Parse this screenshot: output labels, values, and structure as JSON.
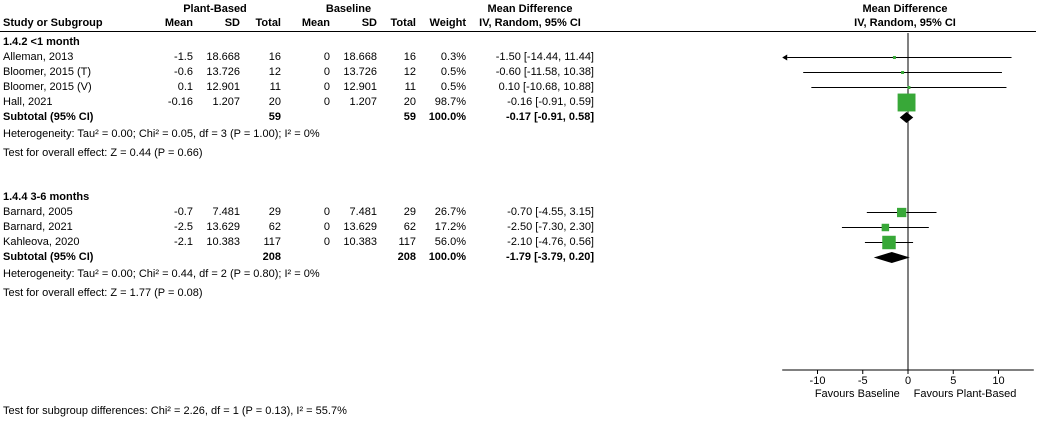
{
  "header": {
    "group1": "Plant-Based",
    "group2": "Baseline",
    "md_col_title": "Mean Difference",
    "md_col_sub": "IV, Random, 95% CI",
    "plot_title": "Mean Difference",
    "plot_sub": "IV, Random, 95% CI",
    "cols": [
      "Study or Subgroup",
      "Mean",
      "SD",
      "Total",
      "Mean",
      "SD",
      "Total",
      "Weight",
      "IV, Random, 95% CI"
    ]
  },
  "chart_data": {
    "type": "forest",
    "effect_measure": "Mean Difference IV, Random, 95% CI",
    "x_ticks": [
      -10,
      -5,
      0,
      5,
      10
    ],
    "xlim": [
      -13.9,
      13.9
    ],
    "favours_left": "Favours Baseline",
    "favours_right": "Favours Plant-Based",
    "marker_color": "#38a838",
    "diamond_color": "#000000",
    "subgroups": [
      {
        "label": "1.4.2 <1 month",
        "studies": [
          {
            "name": "Alleman, 2013",
            "mean1": "-1.5",
            "sd1": "18.668",
            "n1": "16",
            "mean2": "0",
            "sd2": "18.668",
            "n2": "16",
            "weight": "0.3%",
            "weight_pct": 0.3,
            "md": -1.5,
            "ci_lo": -14.44,
            "ci_hi": 11.44,
            "ci_text": "-1.50 [-14.44, 11.44]"
          },
          {
            "name": "Bloomer, 2015 (T)",
            "mean1": "-0.6",
            "sd1": "13.726",
            "n1": "12",
            "mean2": "0",
            "sd2": "13.726",
            "n2": "12",
            "weight": "0.5%",
            "weight_pct": 0.5,
            "md": -0.6,
            "ci_lo": -11.58,
            "ci_hi": 10.38,
            "ci_text": "-0.60 [-11.58, 10.38]"
          },
          {
            "name": "Bloomer, 2015 (V)",
            "mean1": "0.1",
            "sd1": "12.901",
            "n1": "11",
            "mean2": "0",
            "sd2": "12.901",
            "n2": "11",
            "weight": "0.5%",
            "weight_pct": 0.5,
            "md": 0.1,
            "ci_lo": -10.68,
            "ci_hi": 10.88,
            "ci_text": "0.10 [-10.68, 10.88]"
          },
          {
            "name": "Hall, 2021",
            "mean1": "-0.16",
            "sd1": "1.207",
            "n1": "20",
            "mean2": "0",
            "sd2": "1.207",
            "n2": "20",
            "weight": "98.7%",
            "weight_pct": 98.7,
            "md": -0.16,
            "ci_lo": -0.91,
            "ci_hi": 0.59,
            "ci_text": "-0.16 [-0.91, 0.59]"
          }
        ],
        "subtotal": {
          "label": "Subtotal (95% CI)",
          "n1": "59",
          "n2": "59",
          "weight": "100.0%",
          "md": -0.17,
          "ci_lo": -0.91,
          "ci_hi": 0.58,
          "ci_text": "-0.17 [-0.91, 0.58]"
        },
        "heterogeneity": "Heterogeneity: Tau² = 0.00; Chi² = 0.05, df = 3 (P = 1.00); I² = 0%",
        "overall_effect": "Test for overall effect: Z = 0.44 (P = 0.66)"
      },
      {
        "label": "1.4.4 3-6 months",
        "studies": [
          {
            "name": "Barnard, 2005",
            "mean1": "-0.7",
            "sd1": "7.481",
            "n1": "29",
            "mean2": "0",
            "sd2": "7.481",
            "n2": "29",
            "weight": "26.7%",
            "weight_pct": 26.7,
            "md": -0.7,
            "ci_lo": -4.55,
            "ci_hi": 3.15,
            "ci_text": "-0.70 [-4.55, 3.15]"
          },
          {
            "name": "Barnard, 2021",
            "mean1": "-2.5",
            "sd1": "13.629",
            "n1": "62",
            "mean2": "0",
            "sd2": "13.629",
            "n2": "62",
            "weight": "17.2%",
            "weight_pct": 17.2,
            "md": -2.5,
            "ci_lo": -7.3,
            "ci_hi": 2.3,
            "ci_text": "-2.50 [-7.30, 2.30]"
          },
          {
            "name": "Kahleova, 2020",
            "mean1": "-2.1",
            "sd1": "10.383",
            "n1": "117",
            "mean2": "0",
            "sd2": "10.383",
            "n2": "117",
            "weight": "56.0%",
            "weight_pct": 56.0,
            "md": -2.1,
            "ci_lo": -4.76,
            "ci_hi": 0.56,
            "ci_text": "-2.10 [-4.76, 0.56]"
          }
        ],
        "subtotal": {
          "label": "Subtotal (95% CI)",
          "n1": "208",
          "n2": "208",
          "weight": "100.0%",
          "md": -1.79,
          "ci_lo": -3.79,
          "ci_hi": 0.2,
          "ci_text": "-1.79 [-3.79, 0.20]"
        },
        "heterogeneity": "Heterogeneity: Tau² = 0.00; Chi² = 0.44, df = 2 (P = 0.80); I² = 0%",
        "overall_effect": "Test for overall effect: Z = 1.77 (P = 0.08)"
      }
    ],
    "subgroup_difference": "Test for subgroup differences: Chi² = 2.26, df = 1 (P = 0.13), I² = 55.7%"
  }
}
